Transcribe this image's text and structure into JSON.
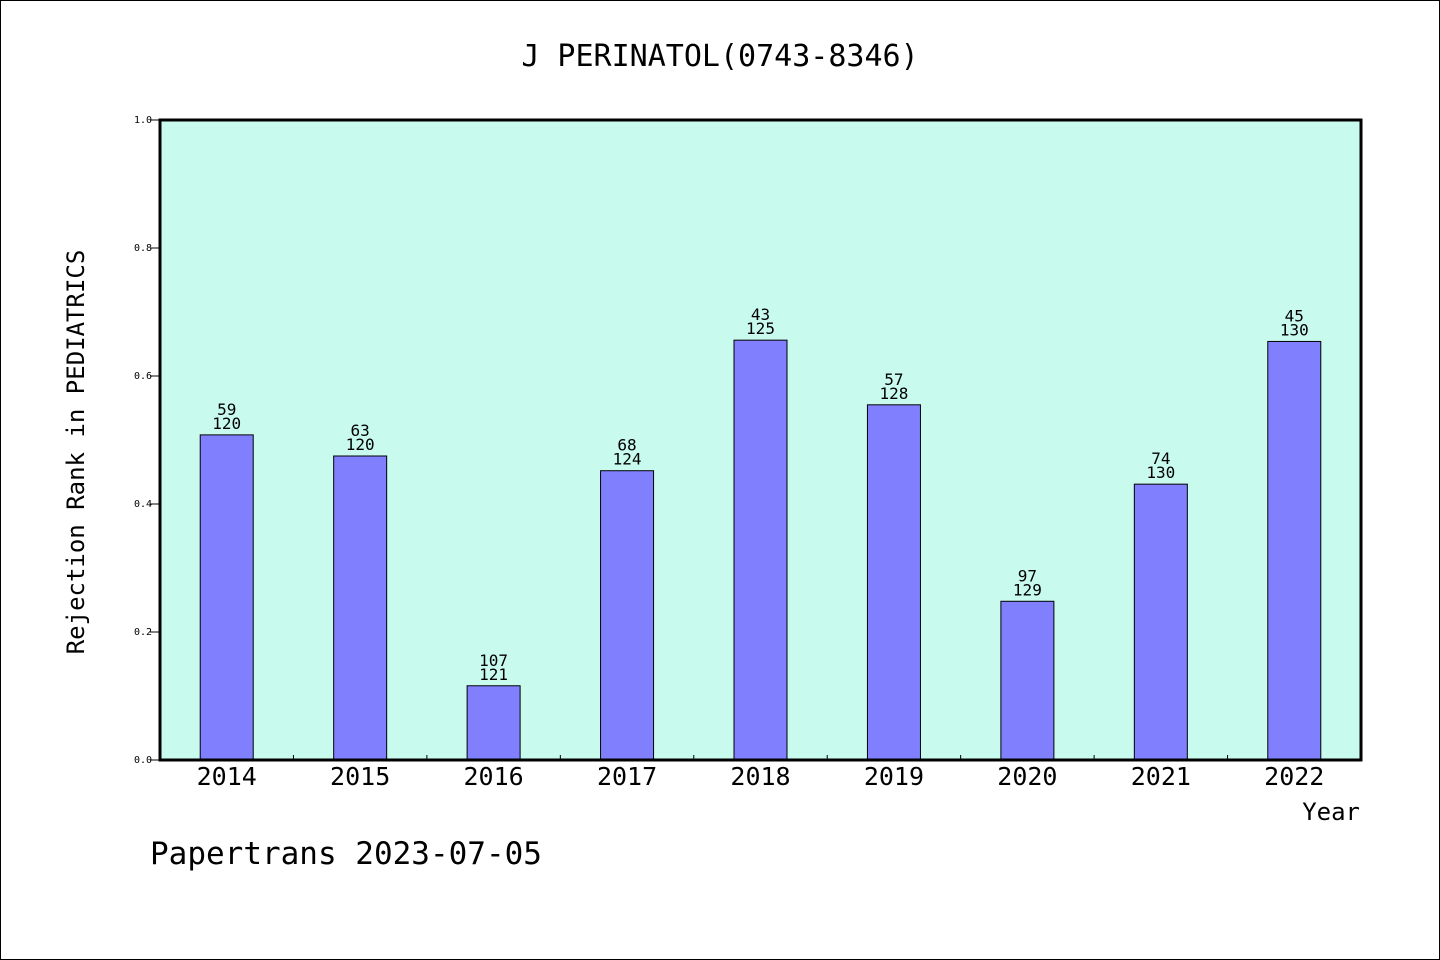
{
  "chart_data": {
    "type": "bar",
    "title": "J PERINATOL(0743-8346)",
    "xlabel": "Year",
    "ylabel": "Rejection Rank in PEDIATRICS",
    "ylim": [
      0,
      1.0
    ],
    "yticks": [
      "0.0",
      "0.2",
      "0.4",
      "0.6",
      "0.8",
      "1.0"
    ],
    "categories": [
      "2014",
      "2015",
      "2016",
      "2017",
      "2018",
      "2019",
      "2020",
      "2021",
      "2022"
    ],
    "values": [
      0.508,
      0.475,
      0.116,
      0.452,
      0.656,
      0.555,
      0.248,
      0.431,
      0.654
    ],
    "labels_top": [
      "59",
      "63",
      "107",
      "68",
      "43",
      "57",
      "97",
      "74",
      "45"
    ],
    "labels_bottom": [
      "120",
      "120",
      "121",
      "124",
      "125",
      "128",
      "129",
      "130",
      "130"
    ],
    "grid": false,
    "colors": {
      "plot_bg": "#c8fbee",
      "bar_fill": "#8080ff",
      "bar_stroke": "#000000"
    }
  },
  "footer": "Papertrans 2023-07-05"
}
